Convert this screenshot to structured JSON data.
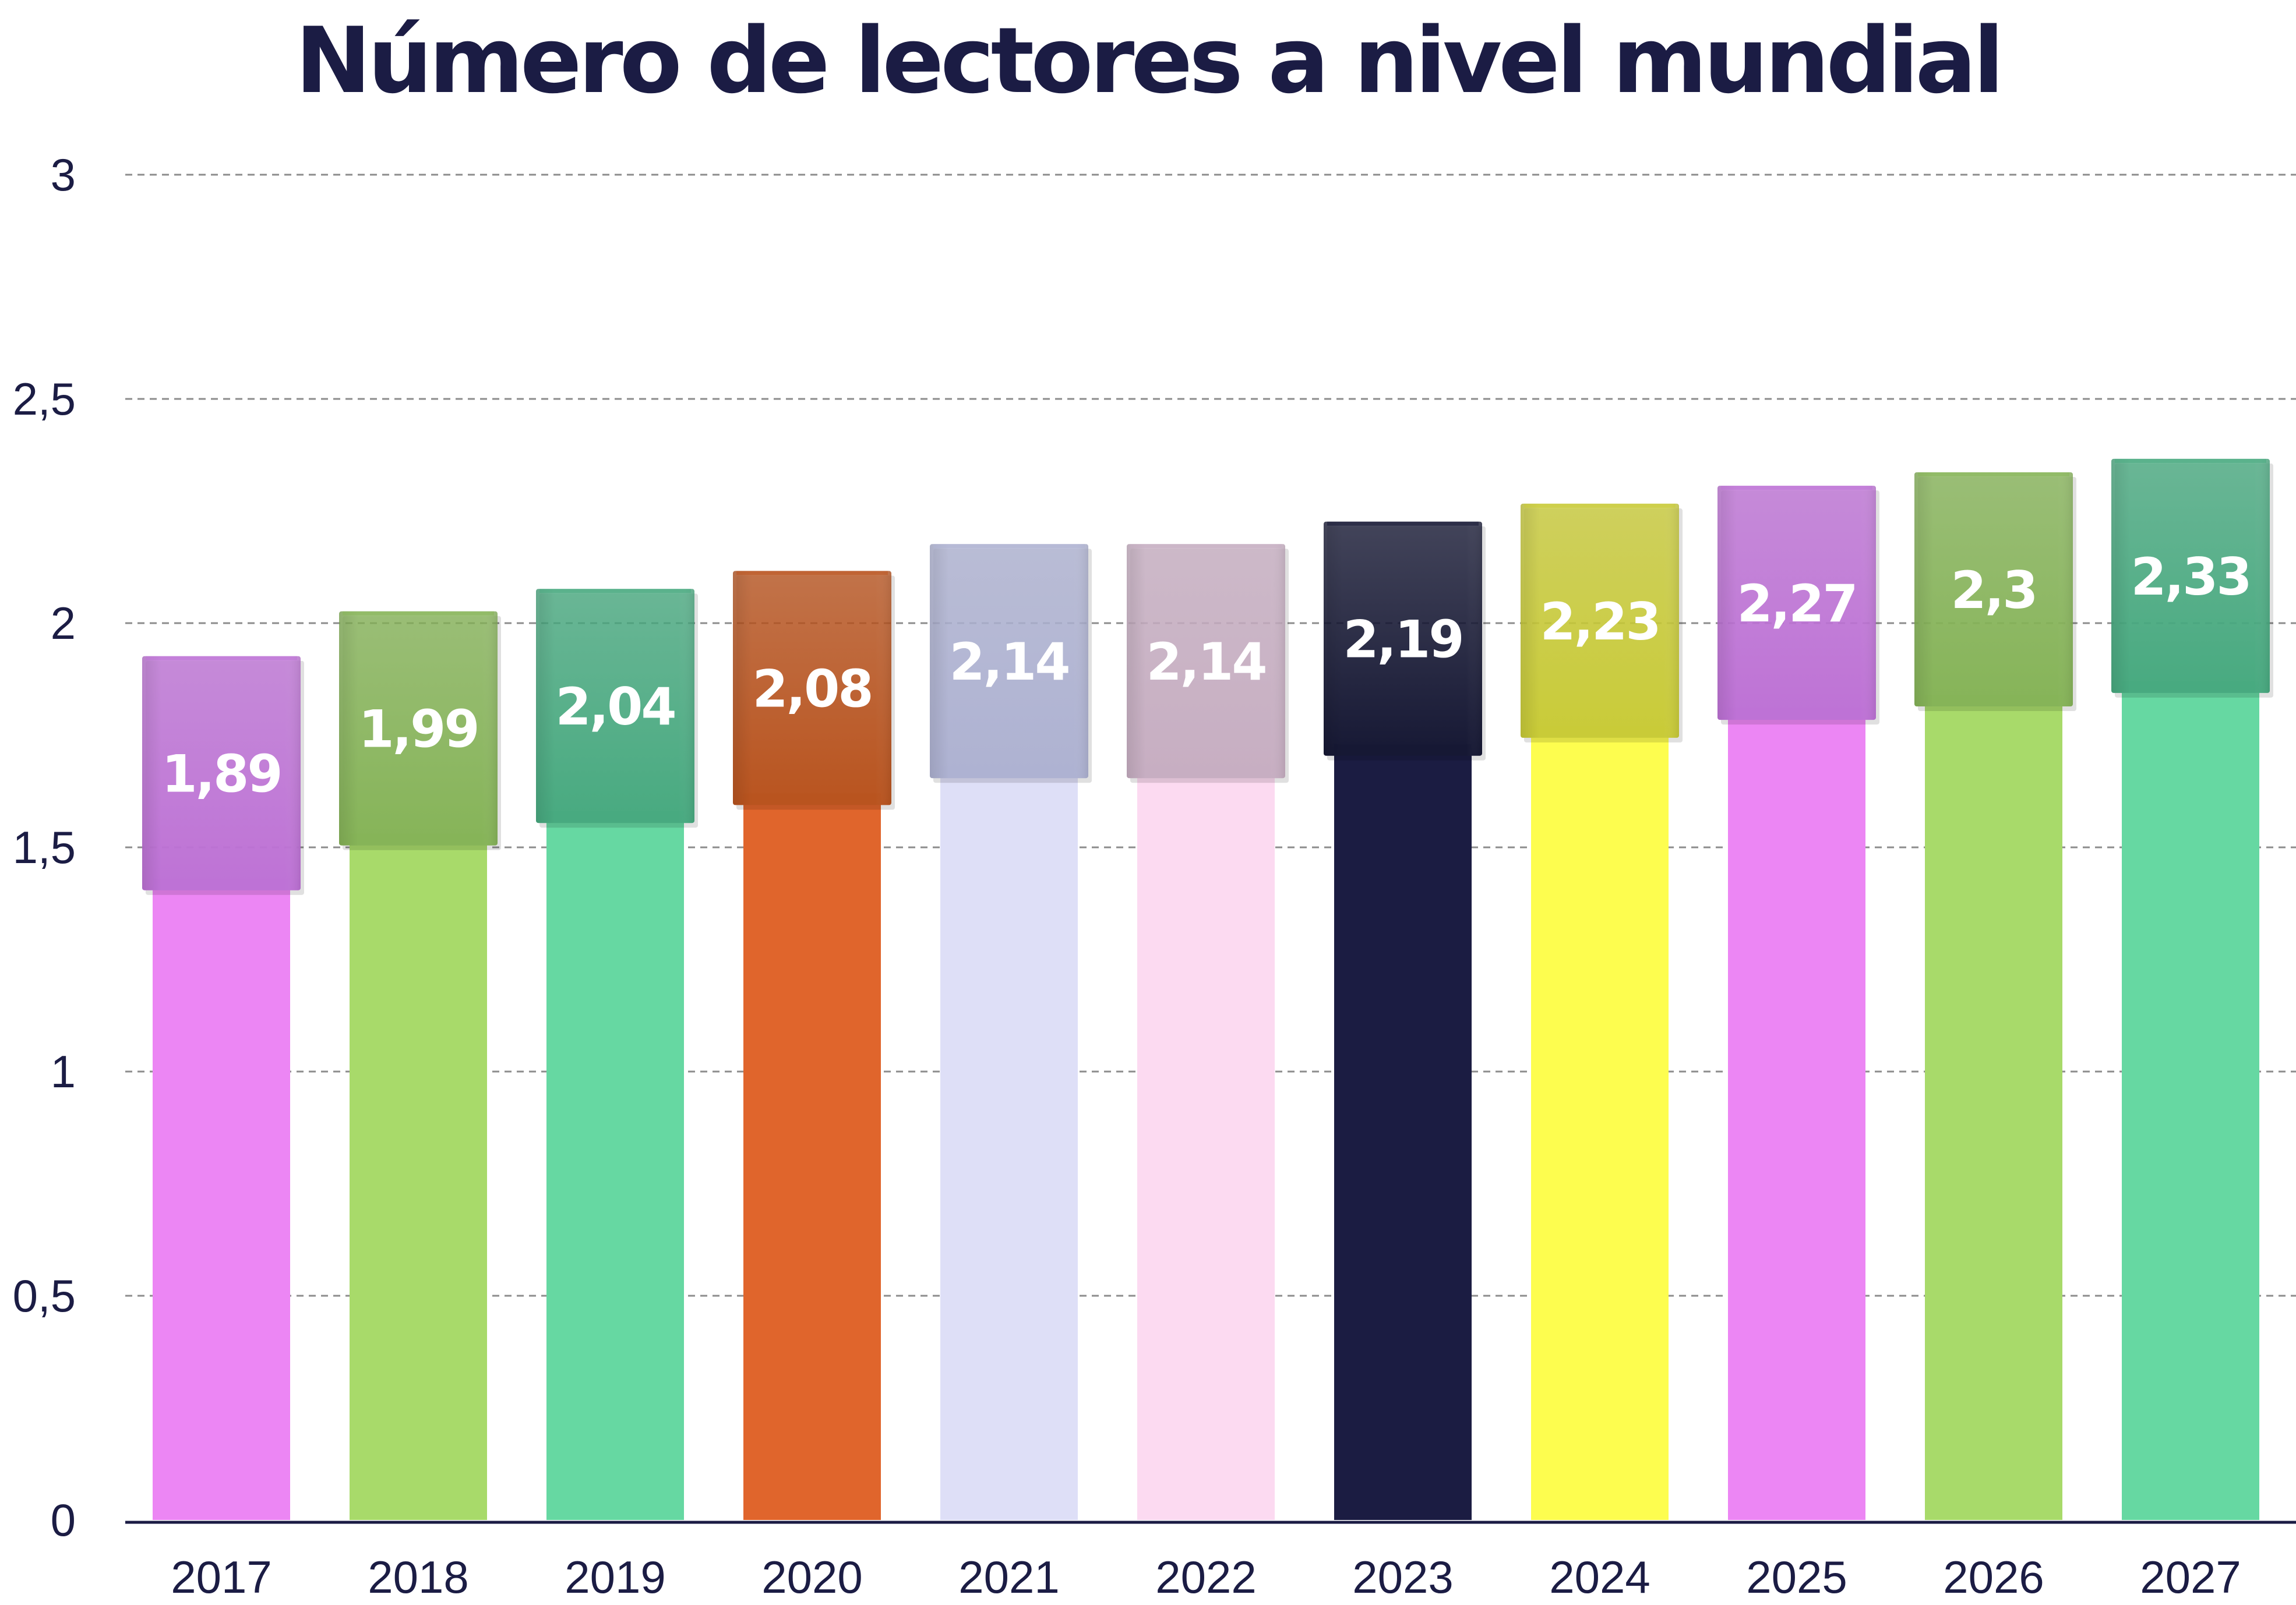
{
  "chart_data": {
    "type": "bar",
    "title": "Número de lectores a nivel mundial",
    "xlabel": "",
    "ylabel": "",
    "categories": [
      "2017",
      "2018",
      "2019",
      "2020",
      "2021",
      "2022",
      "2023",
      "2024",
      "2025",
      "2026",
      "2027"
    ],
    "values": [
      1.89,
      1.99,
      2.04,
      2.08,
      2.14,
      2.14,
      2.19,
      2.23,
      2.27,
      2.3,
      2.33
    ],
    "data_labels": [
      "1,89",
      "1,99",
      "2,04",
      "2,08",
      "2,14",
      "2,14",
      "2,19",
      "2,23",
      "2,27",
      "2,3",
      "2,33"
    ],
    "ylim": [
      0,
      3
    ],
    "yticks": [
      0,
      0.5,
      1,
      1.5,
      2,
      2.5,
      3
    ],
    "ytick_labels": [
      "0",
      "0,5",
      "1",
      "1,5",
      "2",
      "2,5",
      "3"
    ],
    "grid": true,
    "grid_style": "dashed",
    "legend": "none",
    "bar_style": "each bar topped by a book-shaped block holding the value label",
    "colors": [
      "#ec86f4",
      "#a8da6a",
      "#66d8a2",
      "#e0652c",
      "#dedff7",
      "#fcdaf1",
      "#1b1c42",
      "#fdfd4f",
      "#ec86f4",
      "#a8da6a",
      "#66d8a2"
    ],
    "book_colors": [
      "#be72d6",
      "#86b458",
      "#48aa80",
      "#b9541f",
      "#aeb2d2",
      "#c7aec2",
      "#161834",
      "#c9cb38",
      "#be72d6",
      "#86b458",
      "#48aa80"
    ]
  }
}
